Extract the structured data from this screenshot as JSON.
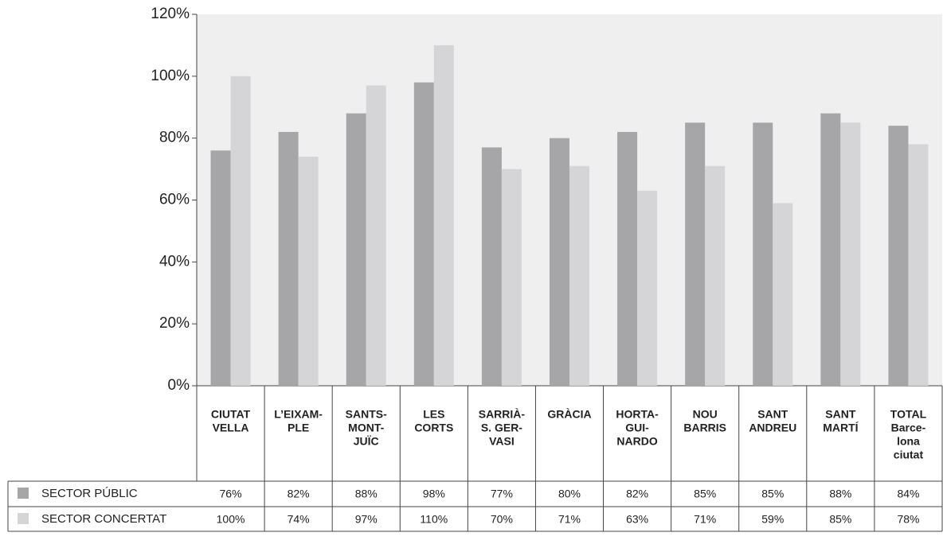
{
  "chart_data": {
    "type": "bar",
    "categories": [
      [
        "CIUTAT",
        "VELLA"
      ],
      [
        "L’EIXAM-",
        "PLE"
      ],
      [
        "SANTS-",
        "MONT-",
        "JUÏC"
      ],
      [
        "LES",
        "CORTS"
      ],
      [
        "SARRIÀ-",
        "S. GER-",
        "VASI"
      ],
      [
        "GRÀCIA"
      ],
      [
        "HORTA-",
        "GUI-",
        "NARDO"
      ],
      [
        "NOU",
        "BARRIS"
      ],
      [
        "SANT",
        "ANDREU"
      ],
      [
        "SANT",
        "MARTÍ"
      ],
      [
        "TOTAL",
        "Barce-",
        "lona",
        "ciutat"
      ]
    ],
    "series": [
      {
        "name": "SECTOR PÚBLIC",
        "color": "#a6a6a9",
        "values": [
          76,
          82,
          88,
          98,
          77,
          80,
          82,
          85,
          85,
          88,
          84
        ],
        "value_labels": [
          "76%",
          "82%",
          "88%",
          "98%",
          "77%",
          "80%",
          "82%",
          "85%",
          "85%",
          "88%",
          "84%"
        ]
      },
      {
        "name": "SECTOR CONCERTAT",
        "color": "#d5d5d7",
        "values": [
          100,
          74,
          97,
          110,
          70,
          71,
          63,
          71,
          59,
          85,
          78
        ],
        "value_labels": [
          "100%",
          "74%",
          "97%",
          "110%",
          "70%",
          "71%",
          "63%",
          "71%",
          "59%",
          "85%",
          "78%"
        ]
      }
    ],
    "ylim": [
      0,
      120
    ],
    "yticks": [
      {
        "value": 0,
        "label": "0%"
      },
      {
        "value": 20,
        "label": "20%"
      },
      {
        "value": 40,
        "label": "40%"
      },
      {
        "value": 60,
        "label": "60%"
      },
      {
        "value": 80,
        "label": "80%"
      },
      {
        "value": 100,
        "label": "100%"
      },
      {
        "value": 120,
        "label": "120%"
      }
    ]
  }
}
